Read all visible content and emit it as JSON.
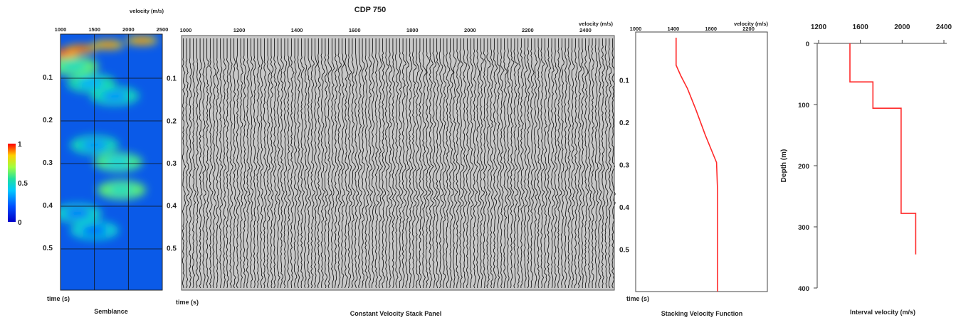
{
  "page_title": "CDP  750",
  "colorbar": {
    "labels": [
      "1",
      "0.5",
      "0"
    ]
  },
  "chart_data": [
    {
      "id": "semblance",
      "type": "heatmap",
      "title": "Semblance",
      "xlabel": "velocity  (m/s)",
      "ylabel": "time (s)",
      "xlim": [
        1000,
        2500
      ],
      "ylim": [
        0.0,
        0.6
      ],
      "xticks": [
        "1000",
        "1500",
        "2000",
        "2500"
      ],
      "yticks": [
        "0.1",
        "0.2",
        "0.3",
        "0.4",
        "0.5"
      ],
      "grid": true,
      "colormap": "jet",
      "peaks": [
        {
          "velocity": 1050,
          "time": 0.045,
          "value": 1.0
        },
        {
          "velocity": 1300,
          "time": 0.035,
          "value": 0.95
        },
        {
          "velocity": 1700,
          "time": 0.025,
          "value": 0.9
        },
        {
          "velocity": 2200,
          "time": 0.015,
          "value": 0.9
        },
        {
          "velocity": 1200,
          "time": 0.075,
          "value": 0.5
        },
        {
          "velocity": 1450,
          "time": 0.115,
          "value": 0.35
        },
        {
          "velocity": 1800,
          "time": 0.145,
          "value": 0.3
        },
        {
          "velocity": 1850,
          "time": 0.3,
          "value": 0.45
        },
        {
          "velocity": 1900,
          "time": 0.365,
          "value": 0.5
        },
        {
          "velocity": 1500,
          "time": 0.26,
          "value": 0.3
        },
        {
          "velocity": 1250,
          "time": 0.42,
          "value": 0.25
        },
        {
          "velocity": 1500,
          "time": 0.46,
          "value": 0.22
        }
      ]
    },
    {
      "id": "cvs-panel",
      "type": "wiggle",
      "title": "Constant Velocity Stack Panel",
      "xlabel": "velocity  (m/s)",
      "ylabel": "time (s)",
      "xlim": [
        1000,
        2500
      ],
      "ylim": [
        0.0,
        0.6
      ],
      "xticks": [
        "1000",
        "1200",
        "1400",
        "1600",
        "1800",
        "2000",
        "2200",
        "2400"
      ],
      "yticks": [
        "0.1",
        "0.2",
        "0.3",
        "0.4",
        "0.5"
      ],
      "panel_velocities": [
        1000,
        1100,
        1200,
        1300,
        1400,
        1500,
        1600,
        1700,
        1800,
        1900,
        2000,
        2100,
        2200,
        2300,
        2400,
        2500
      ],
      "reflectors": [
        {
          "time": 0.075,
          "strength": 0.8
        },
        {
          "time": 0.115,
          "strength": 0.6
        },
        {
          "time": 0.14,
          "strength": 0.5
        },
        {
          "time": 0.21,
          "strength": 0.55
        },
        {
          "time": 0.27,
          "strength": 0.5
        },
        {
          "time": 0.31,
          "strength": 0.9
        },
        {
          "time": 0.37,
          "strength": 1.0
        },
        {
          "time": 0.395,
          "strength": 0.85
        },
        {
          "time": 0.43,
          "strength": 0.5
        },
        {
          "time": 0.57,
          "strength": 0.5
        }
      ]
    },
    {
      "id": "stacking-velocity",
      "type": "line",
      "title": "Stacking Velocity Function",
      "xlabel": "velocity  (m/s)",
      "ylabel": "time (s)",
      "xlim": [
        1000,
        2400
      ],
      "ylim": [
        0.0,
        0.6
      ],
      "xticks": [
        "1000",
        "1400",
        "1800",
        "2200"
      ],
      "yticks": [
        "0.1",
        "0.2",
        "0.3",
        "0.4",
        "0.5"
      ],
      "color": "#ff2a2a",
      "series": [
        {
          "x": [
            1430,
            1430,
            1480,
            1550,
            1640,
            1740,
            1860,
            1870,
            1870
          ],
          "y": [
            0.0,
            0.065,
            0.09,
            0.12,
            0.17,
            0.23,
            0.295,
            0.36,
            0.6
          ]
        }
      ]
    },
    {
      "id": "interval-velocity",
      "type": "line",
      "title": "Interval velocity (m/s)",
      "xlabel": "",
      "ylabel": "Depth (m)",
      "xlim": [
        1000,
        2500
      ],
      "ylim": [
        0,
        400
      ],
      "xticks": [
        "1200",
        "1600",
        "2000",
        "2400"
      ],
      "yticks": [
        "0",
        "100",
        "200",
        "300",
        "400"
      ],
      "color": "#ff2a2a",
      "series": [
        {
          "x": [
            1500,
            1500,
            1720,
            1720,
            1990,
            1990,
            2130,
            2130
          ],
          "y": [
            0,
            63,
            63,
            106,
            106,
            278,
            278,
            345
          ]
        }
      ]
    }
  ]
}
